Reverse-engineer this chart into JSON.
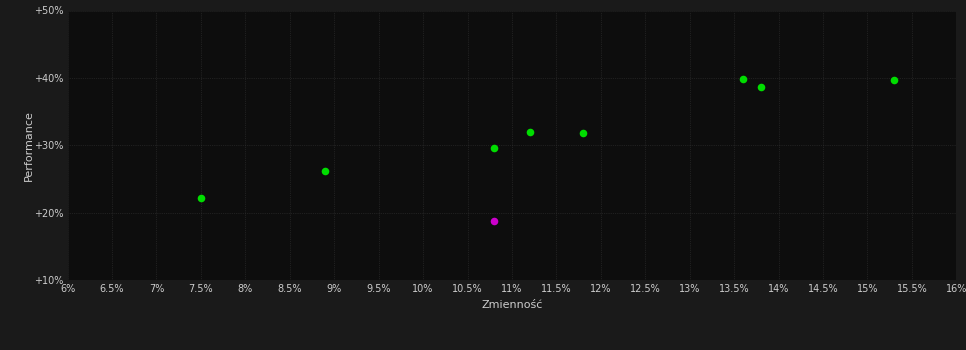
{
  "background_color": "#1a1a1a",
  "plot_bg_color": "#0d0d0d",
  "grid_color": "#333333",
  "xlabel": "Zmienność",
  "ylabel": "Performance",
  "xlim": [
    0.06,
    0.16
  ],
  "ylim": [
    0.1,
    0.5
  ],
  "xticks": [
    0.06,
    0.065,
    0.07,
    0.075,
    0.08,
    0.085,
    0.09,
    0.095,
    0.1,
    0.105,
    0.11,
    0.115,
    0.12,
    0.125,
    0.13,
    0.135,
    0.14,
    0.145,
    0.15,
    0.155,
    0.16
  ],
  "yticks": [
    0.1,
    0.2,
    0.3,
    0.4,
    0.5
  ],
  "ytick_labels": [
    "+10%",
    "+20%",
    "+30%",
    "+40%",
    "+50%"
  ],
  "xtick_labels": [
    "6%",
    "6.5%",
    "7%",
    "7.5%",
    "8%",
    "8.5%",
    "9%",
    "9.5%",
    "10%",
    "10.5%",
    "11%",
    "11.5%",
    "12%",
    "12.5%",
    "13%",
    "13.5%",
    "14%",
    "14.5%",
    "15%",
    "15.5%",
    "16%"
  ],
  "green_points": [
    [
      0.075,
      0.221
    ],
    [
      0.089,
      0.262
    ],
    [
      0.108,
      0.296
    ],
    [
      0.112,
      0.32
    ],
    [
      0.118,
      0.318
    ],
    [
      0.136,
      0.398
    ],
    [
      0.138,
      0.387
    ],
    [
      0.153,
      0.397
    ]
  ],
  "magenta_points": [
    [
      0.108,
      0.188
    ]
  ],
  "green_color": "#00dd00",
  "magenta_color": "#cc00cc",
  "marker_size": 30,
  "tick_color": "#cccccc",
  "label_color": "#cccccc",
  "grid_linewidth": 0.5,
  "grid_linestyle": ":"
}
